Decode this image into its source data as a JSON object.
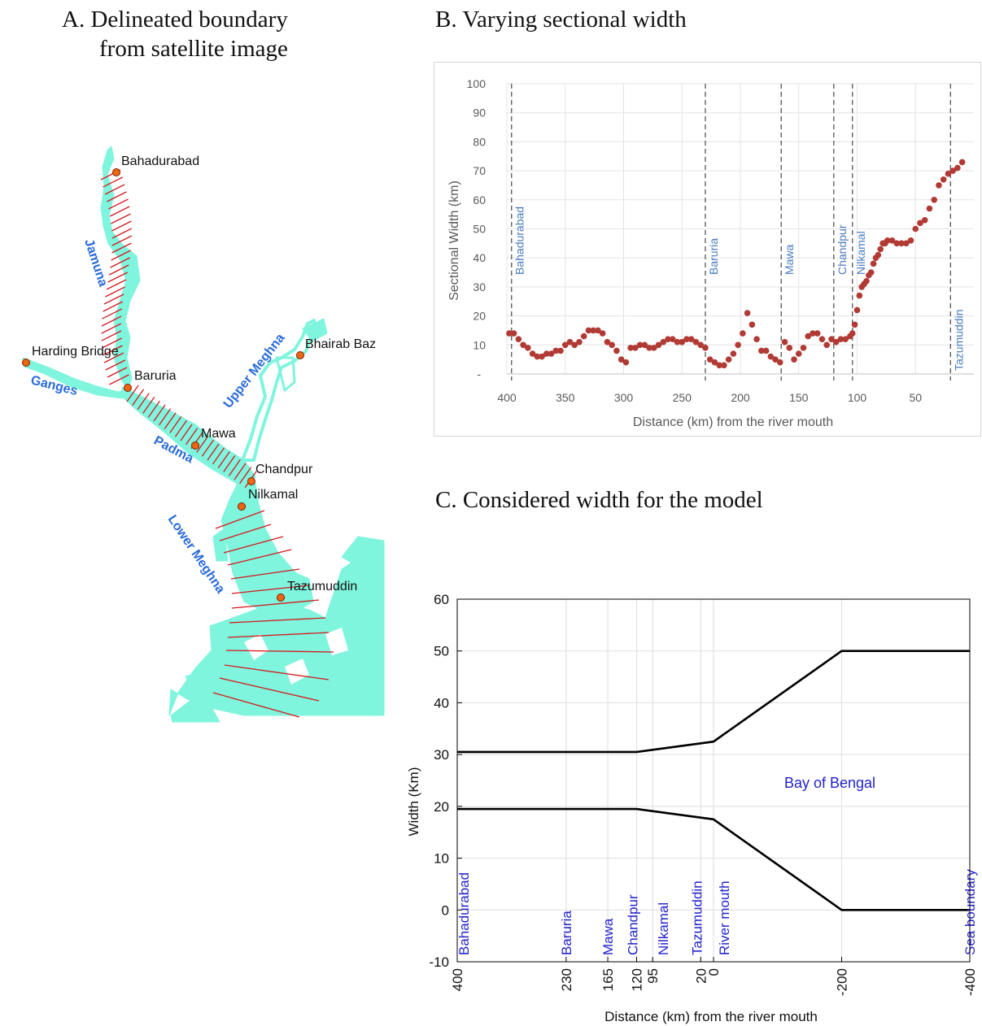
{
  "panels": {
    "a_title_line1": "A.   Delineated boundary",
    "a_title_line2": "from satellite image",
    "b_title": "B.   Varying sectional width",
    "c_title": "C.  Considered width for the model"
  },
  "map": {
    "stations": [
      "Bahadurabad",
      "Harding Bridge",
      "Baruria",
      "Bhairab Baz",
      "Mawa",
      "Chandpur",
      "Nilkamal",
      "Tazumuddin"
    ],
    "rivers": [
      "Jamuna",
      "Ganges",
      "Upper Meghna",
      "Padma",
      "Lower Meghna"
    ],
    "colors": {
      "water": "#7ff5dd",
      "transect": "#d4181c",
      "station": "#ee6611",
      "river_label": "#2a6bd9"
    }
  },
  "chart_data": [
    {
      "type": "scatter",
      "xlabel": "Distance (km) from the river mouth",
      "ylabel": "Sectional Width (km)",
      "xlim": [
        400,
        0
      ],
      "ylim": [
        0,
        100
      ],
      "xticks": [
        400,
        350,
        300,
        250,
        200,
        150,
        100,
        50
      ],
      "yticks": [
        10,
        20,
        30,
        40,
        50,
        60,
        70,
        80,
        90,
        100
      ],
      "grid": true,
      "color": "#b23a35",
      "markers": [
        {
          "label": "Bahadurabad",
          "x": 396
        },
        {
          "label": "Baruria",
          "x": 230
        },
        {
          "label": "Mawa",
          "x": 165
        },
        {
          "label": "Chandpur",
          "x": 120
        },
        {
          "label": "Nilkamal",
          "x": 104
        },
        {
          "label": "Tazumuddin",
          "x": 20
        }
      ],
      "x": [
        398,
        394,
        390,
        386,
        382,
        378,
        374,
        370,
        366,
        362,
        358,
        354,
        350,
        346,
        342,
        338,
        334,
        330,
        326,
        322,
        318,
        314,
        310,
        306,
        302,
        298,
        294,
        290,
        286,
        282,
        278,
        274,
        270,
        266,
        262,
        258,
        254,
        250,
        246,
        242,
        238,
        234,
        230,
        226,
        222,
        218,
        214,
        210,
        206,
        202,
        198,
        194,
        190,
        186,
        182,
        178,
        174,
        170,
        166,
        162,
        158,
        154,
        150,
        146,
        142,
        138,
        134,
        130,
        126,
        122,
        118,
        114,
        110,
        106,
        104,
        102,
        100,
        98,
        96,
        94,
        92,
        90,
        88,
        86,
        84,
        82,
        80,
        78,
        76,
        74,
        70,
        66,
        62,
        58,
        54,
        50,
        46,
        42,
        38,
        34,
        30,
        26,
        22,
        18,
        14,
        10
      ],
      "y": [
        14,
        14,
        12,
        10,
        9,
        7,
        6,
        6,
        7,
        7,
        8,
        8,
        10,
        11,
        10,
        11,
        13,
        15,
        15,
        15,
        14,
        11,
        10,
        8,
        5,
        4,
        9,
        9,
        10,
        10,
        9,
        9,
        10,
        11,
        12,
        12,
        11,
        11,
        12,
        12,
        11,
        10,
        9,
        5,
        4,
        3,
        3,
        5,
        7,
        10,
        14,
        21,
        17,
        12,
        8,
        8,
        6,
        5,
        4,
        11,
        9,
        5,
        7,
        9,
        13,
        14,
        14,
        12,
        10,
        12,
        11,
        12,
        12,
        13,
        14,
        17,
        22,
        27,
        30,
        31,
        32,
        34,
        35,
        38,
        40,
        41,
        43,
        45,
        45,
        46,
        46,
        45,
        45,
        45,
        46,
        50,
        52,
        53,
        57,
        60,
        65,
        67,
        69,
        70,
        71,
        73
      ]
    },
    {
      "type": "line",
      "xlabel": "Distance (km) from the river mouth",
      "ylabel": "Width (Km)",
      "xlim": [
        400,
        -400
      ],
      "ylim": [
        -10,
        60
      ],
      "xticks": [
        400,
        230,
        165,
        120,
        95,
        20,
        0,
        -200,
        -400
      ],
      "yticks": [
        -10,
        0,
        10,
        20,
        30,
        40,
        50,
        60
      ],
      "grid": true,
      "annotation": "Bay of Bengal",
      "vertical_labels": [
        {
          "x": 400,
          "text": "Bahadurabad"
        },
        {
          "x": 230,
          "text": "Baruria"
        },
        {
          "x": 165,
          "text": "Mawa"
        },
        {
          "x": 120,
          "text": "Chandpur"
        },
        {
          "x": 95,
          "text": "Nilkamal"
        },
        {
          "x": 20,
          "text": "Tazumuddin"
        },
        {
          "x": 0,
          "text": "River mouth"
        },
        {
          "x": -400,
          "text": "Sea boundary"
        }
      ],
      "series": [
        {
          "x": [
            400,
            120,
            0,
            -200,
            -400
          ],
          "y": [
            30.5,
            30.5,
            32.5,
            50,
            50
          ]
        },
        {
          "x": [
            400,
            120,
            0,
            -200,
            -400
          ],
          "y": [
            19.5,
            19.5,
            17.5,
            0,
            0
          ]
        }
      ],
      "annotation_color": "#2222cc"
    }
  ]
}
